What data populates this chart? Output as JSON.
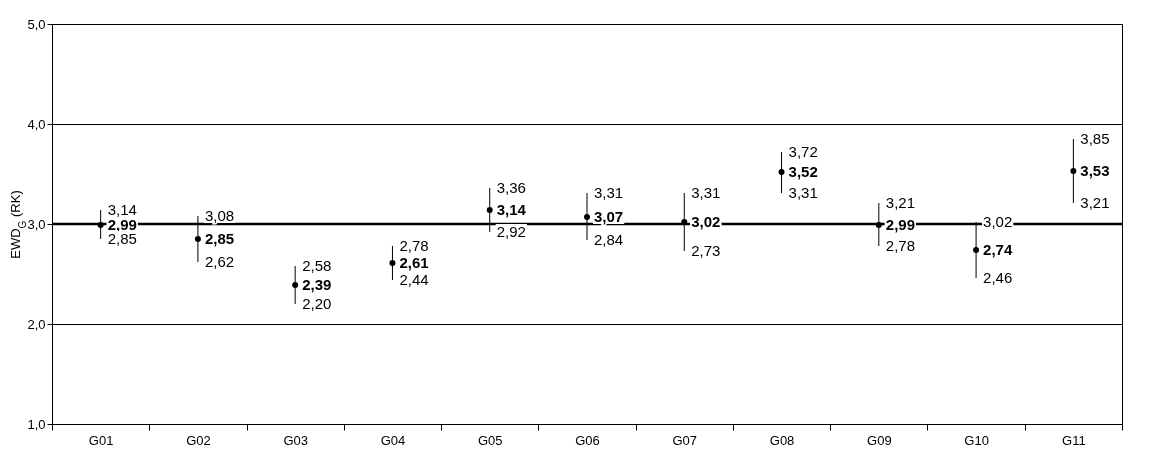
{
  "chart_data": {
    "type": "scatter",
    "ylabel": "EWD$_{G}$ (RK)",
    "categories": [
      "G01",
      "G02",
      "G03",
      "G04",
      "G05",
      "G06",
      "G07",
      "G08",
      "G09",
      "G10",
      "G11"
    ],
    "values": [
      2.99,
      2.85,
      2.39,
      2.61,
      3.14,
      3.07,
      3.02,
      3.52,
      2.99,
      2.74,
      3.53
    ],
    "errors": [
      [
        2.85,
        3.14
      ],
      [
        2.62,
        3.08
      ],
      [
        2.2,
        2.58
      ],
      [
        2.44,
        2.78
      ],
      [
        2.92,
        3.36
      ],
      [
        2.84,
        3.31
      ],
      [
        2.73,
        3.31
      ],
      [
        3.31,
        3.72
      ],
      [
        2.78,
        3.21
      ],
      [
        2.46,
        3.02
      ],
      [
        3.21,
        3.85
      ]
    ],
    "value_labels": [
      "2,99",
      "2,85",
      "2,39",
      "2,61",
      "3,14",
      "3,07",
      "3,02",
      "3,52",
      "2,99",
      "2,74",
      "3,53"
    ],
    "color": "#000000",
    "ylim": [
      1,
      5
    ],
    "yticks": [
      {
        "value": 1,
        "label": "1,0"
      },
      {
        "value": 2,
        "label": "2,0"
      },
      {
        "value": 3,
        "label": "3,0"
      },
      {
        "value": 4,
        "label": "4,0"
      },
      {
        "value": 5,
        "label": "5,0"
      }
    ],
    "grid": "y",
    "marker": "circle",
    "ref_lines": [
      {
        "axis": "y",
        "value": 3,
        "color": "#000000"
      }
    ],
    "annotations": [
      {
        "text": "3,14",
        "x": "G01",
        "y": 3.14
      },
      {
        "text": "2,85",
        "x": "G01",
        "y": 2.85
      },
      {
        "text": "3,08",
        "x": "G02",
        "y": 3.08
      },
      {
        "text": "2,62",
        "x": "G02",
        "y": 2.62
      },
      {
        "text": "2,58",
        "x": "G03",
        "y": 2.58
      },
      {
        "text": "2,20",
        "x": "G03",
        "y": 2.2
      },
      {
        "text": "2,78",
        "x": "G04",
        "y": 2.78
      },
      {
        "text": "2,44",
        "x": "G04",
        "y": 2.44
      },
      {
        "text": "3,36",
        "x": "G05",
        "y": 3.36
      },
      {
        "text": "2,92",
        "x": "G05",
        "y": 2.92
      },
      {
        "text": "3,31",
        "x": "G06",
        "y": 3.31
      },
      {
        "text": "2,84",
        "x": "G06",
        "y": 2.84
      },
      {
        "text": "3,31",
        "x": "G07",
        "y": 3.31
      },
      {
        "text": "2,73",
        "x": "G07",
        "y": 2.73
      },
      {
        "text": "3,72",
        "x": "G08",
        "y": 3.72
      },
      {
        "text": "3,31",
        "x": "G08",
        "y": 3.31
      },
      {
        "text": "3,21",
        "x": "G09",
        "y": 3.21
      },
      {
        "text": "2,78",
        "x": "G09",
        "y": 2.78
      },
      {
        "text": "3,02",
        "x": "G10",
        "y": 3.02
      },
      {
        "text": "2,46",
        "x": "G10",
        "y": 2.46
      },
      {
        "text": "3,85",
        "x": "G11",
        "y": 3.85
      },
      {
        "text": "3,21",
        "x": "G11",
        "y": 3.21
      }
    ]
  }
}
